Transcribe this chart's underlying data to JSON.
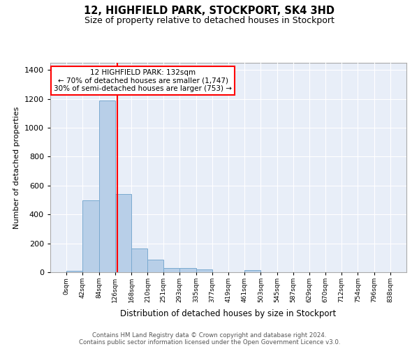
{
  "title1": "12, HIGHFIELD PARK, STOCKPORT, SK4 3HD",
  "title2": "Size of property relative to detached houses in Stockport",
  "xlabel": "Distribution of detached houses by size in Stockport",
  "ylabel": "Number of detached properties",
  "bin_edges": [
    0,
    42,
    84,
    126,
    168,
    210,
    251,
    293,
    335,
    377,
    419,
    461,
    503,
    545,
    587,
    629,
    670,
    712,
    754,
    796,
    838
  ],
  "bar_heights": [
    10,
    500,
    1190,
    540,
    165,
    85,
    30,
    28,
    18,
    0,
    0,
    13,
    0,
    0,
    0,
    0,
    0,
    0,
    0,
    0
  ],
  "bar_color": "#b8cfe8",
  "bar_edge_color": "#7aaad0",
  "vline_x": 132,
  "vline_color": "red",
  "annotation_text": "12 HIGHFIELD PARK: 132sqm\n← 70% of detached houses are smaller (1,747)\n30% of semi-detached houses are larger (753) →",
  "annotation_box_color": "white",
  "annotation_box_edge": "red",
  "ylim": [
    0,
    1450
  ],
  "yticks": [
    0,
    200,
    400,
    600,
    800,
    1000,
    1200,
    1400
  ],
  "background_color": "#e8eef8",
  "grid_color": "white",
  "tick_labels": [
    "0sqm",
    "42sqm",
    "84sqm",
    "126sqm",
    "168sqm",
    "210sqm",
    "251sqm",
    "293sqm",
    "335sqm",
    "377sqm",
    "419sqm",
    "461sqm",
    "503sqm",
    "545sqm",
    "587sqm",
    "629sqm",
    "670sqm",
    "712sqm",
    "754sqm",
    "796sqm",
    "838sqm"
  ],
  "footnote": "Contains HM Land Registry data © Crown copyright and database right 2024.\nContains public sector information licensed under the Open Government Licence v3.0."
}
